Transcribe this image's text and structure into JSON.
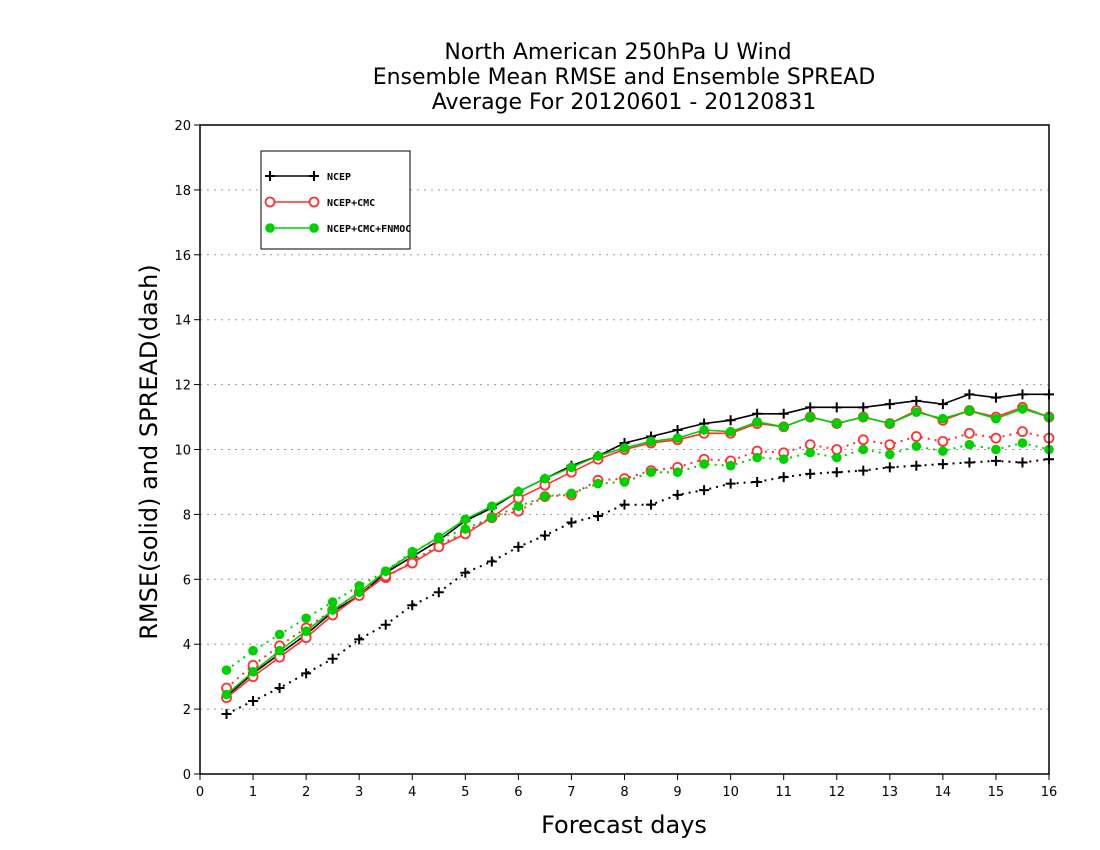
{
  "chart_data": {
    "type": "line",
    "title": [
      "North American 250hPa U Wind",
      "Ensemble Mean RMSE and Ensemble SPREAD",
      "Average For 20120601 - 20120831"
    ],
    "xlabel": "Forecast days",
    "ylabel": "RMSE(solid) and SPREAD(dash)",
    "xlim": [
      0,
      16
    ],
    "ylim": [
      0,
      20
    ],
    "xticks": [
      "0",
      "1",
      "2",
      "3",
      "4",
      "5",
      "6",
      "7",
      "8",
      "9",
      "10",
      "11",
      "12",
      "13",
      "14",
      "15",
      "16"
    ],
    "yticks": [
      "0",
      "2",
      "4",
      "6",
      "8",
      "10",
      "12",
      "14",
      "16",
      "18",
      "20"
    ],
    "grid": "horizontal dotted",
    "legend_position": "top-left",
    "x": [
      0.5,
      1,
      1.5,
      2,
      2.5,
      3,
      3.5,
      4,
      4.5,
      5,
      5.5,
      6,
      6.5,
      7,
      7.5,
      8,
      8.5,
      9,
      9.5,
      10,
      10.5,
      11,
      11.5,
      12,
      12.5,
      13,
      13.5,
      14,
      14.5,
      15,
      15.5,
      16
    ],
    "series": [
      {
        "name": "NCEP",
        "color": "#000000",
        "marker": "plus",
        "rmse": [
          2.4,
          3.1,
          3.7,
          4.3,
          5.0,
          5.5,
          6.2,
          6.7,
          7.2,
          7.8,
          8.2,
          8.7,
          9.1,
          9.5,
          9.8,
          10.2,
          10.4,
          10.6,
          10.8,
          10.9,
          11.1,
          11.1,
          11.3,
          11.3,
          11.3,
          11.4,
          11.5,
          11.4,
          11.7,
          11.6,
          11.7,
          11.7
        ],
        "spread": [
          1.85,
          2.25,
          2.65,
          3.1,
          3.55,
          4.15,
          4.6,
          5.2,
          5.6,
          6.2,
          6.55,
          7.0,
          7.35,
          7.75,
          7.95,
          8.3,
          8.3,
          8.6,
          8.75,
          8.95,
          9.0,
          9.15,
          9.25,
          9.3,
          9.35,
          9.45,
          9.5,
          9.55,
          9.6,
          9.65,
          9.6,
          9.7
        ]
      },
      {
        "name": "NCEP+CMC",
        "color": "#ff3030",
        "marker": "open-circle",
        "rmse": [
          2.35,
          3.0,
          3.6,
          4.2,
          4.9,
          5.5,
          6.1,
          6.5,
          7.0,
          7.4,
          7.9,
          8.5,
          8.9,
          9.3,
          9.7,
          10.0,
          10.2,
          10.3,
          10.5,
          10.5,
          10.8,
          10.7,
          11.0,
          10.8,
          11.0,
          10.8,
          11.2,
          10.9,
          11.2,
          11.0,
          11.3,
          11.0
        ],
        "spread": [
          2.65,
          3.35,
          3.95,
          4.5,
          5.05,
          5.6,
          6.05,
          6.55,
          7.05,
          7.45,
          7.9,
          8.1,
          8.55,
          8.6,
          9.05,
          9.1,
          9.35,
          9.45,
          9.7,
          9.65,
          9.95,
          9.9,
          10.15,
          10.0,
          10.3,
          10.15,
          10.4,
          10.25,
          10.5,
          10.35,
          10.55,
          10.35
        ]
      },
      {
        "name": "NCEP+CMC+FNMOC",
        "color": "#00d000",
        "marker": "filled-circle",
        "rmse": [
          2.45,
          3.15,
          3.8,
          4.4,
          5.05,
          5.6,
          6.25,
          6.8,
          7.3,
          7.85,
          8.25,
          8.7,
          9.1,
          9.45,
          9.8,
          10.05,
          10.25,
          10.35,
          10.6,
          10.55,
          10.85,
          10.7,
          11.0,
          10.8,
          11.0,
          10.8,
          11.15,
          10.95,
          11.2,
          10.95,
          11.25,
          11.0
        ],
        "spread": [
          3.2,
          3.8,
          4.3,
          4.8,
          5.3,
          5.8,
          6.25,
          6.85,
          7.25,
          7.55,
          7.9,
          8.25,
          8.55,
          8.65,
          8.95,
          9.0,
          9.3,
          9.3,
          9.55,
          9.5,
          9.75,
          9.7,
          9.9,
          9.75,
          10.0,
          9.85,
          10.1,
          9.95,
          10.15,
          10.0,
          10.2,
          10.0
        ]
      }
    ]
  }
}
